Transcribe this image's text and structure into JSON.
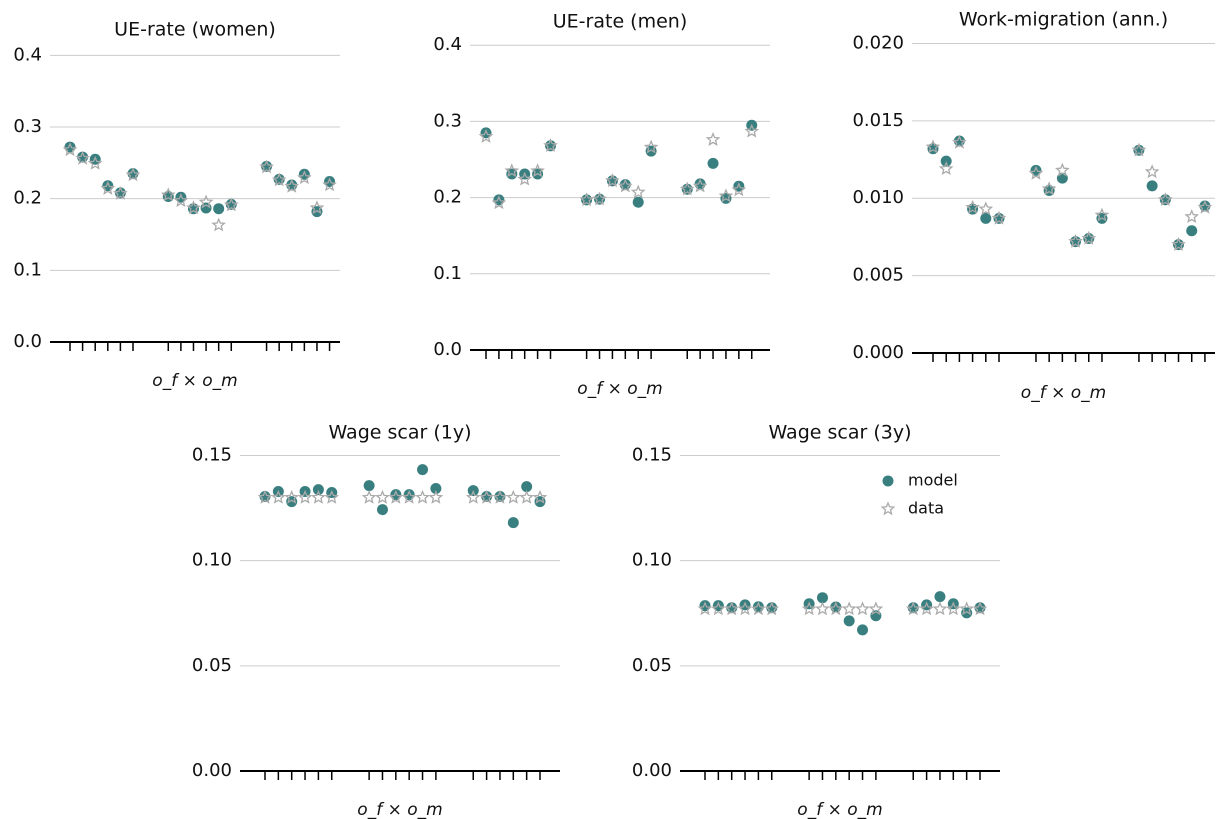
{
  "chart_data": [
    {
      "type": "scatter",
      "title": "UE-rate (women)",
      "xlabel": "o_f × o_m",
      "categories": [
        null,
        null,
        null,
        null,
        null,
        null,
        null,
        null,
        null,
        null,
        null,
        null,
        null,
        null,
        null,
        null,
        null,
        null
      ],
      "series": [
        {
          "color": "#3a7f80",
          "values": [
            0.272,
            0.258,
            0.255,
            0.218,
            0.208,
            0.235,
            0.203,
            0.202,
            0.186,
            0.187,
            0.186,
            0.192,
            0.245,
            0.227,
            0.219,
            0.234,
            0.182,
            0.224
          ]
        },
        {
          "color": "#aaaaaa",
          "values": [
            0.268,
            0.256,
            0.249,
            0.214,
            0.207,
            0.233,
            0.205,
            0.197,
            0.187,
            0.195,
            0.163,
            0.191,
            0.244,
            0.226,
            0.217,
            0.229,
            0.187,
            0.219
          ]
        }
      ],
      "ylim": [
        0,
        0.42
      ],
      "yticks": [
        {
          "value": 0,
          "label": "0.0"
        },
        0.1,
        0.2,
        0.3,
        0.4
      ],
      "grid": true
    },
    {
      "type": "scatter",
      "title": "UE-rate (men)",
      "xlabel": "o_f × o_m",
      "categories": [
        null,
        null,
        null,
        null,
        null,
        null,
        null,
        null,
        null,
        null,
        null,
        null,
        null,
        null,
        null,
        null,
        null,
        null
      ],
      "series": [
        {
          "color": "#3a7f80",
          "values": [
            0.285,
            0.197,
            0.231,
            0.231,
            0.231,
            0.268,
            0.197,
            0.198,
            0.222,
            0.217,
            0.194,
            0.261,
            0.211,
            0.218,
            0.245,
            0.199,
            0.215,
            0.295
          ]
        },
        {
          "color": "#aaaaaa",
          "values": [
            0.28,
            0.193,
            0.235,
            0.224,
            0.235,
            0.268,
            0.197,
            0.198,
            0.222,
            0.215,
            0.207,
            0.266,
            0.211,
            0.215,
            0.276,
            0.202,
            0.21,
            0.287
          ]
        }
      ],
      "ylim": [
        0,
        0.42
      ],
      "yticks": [
        {
          "value": 0,
          "label": "0.0"
        },
        0.1,
        0.2,
        0.3,
        0.4
      ],
      "grid": true
    },
    {
      "type": "scatter",
      "title": "Work-migration (ann.)",
      "xlabel": "o_f × o_m",
      "categories": [
        null,
        null,
        null,
        null,
        null,
        null,
        null,
        null,
        null,
        null,
        null,
        null,
        null,
        null,
        null,
        null,
        null,
        null
      ],
      "series": [
        {
          "color": "#3a7f80",
          "values": [
            0.0132,
            0.0124,
            0.0137,
            0.0093,
            0.0087,
            0.0087,
            0.0118,
            0.0105,
            0.0113,
            0.0072,
            0.0074,
            0.0087,
            0.0131,
            0.0108,
            0.0099,
            0.007,
            0.0079,
            0.0095
          ]
        },
        {
          "color": "#aaaaaa",
          "values": [
            0.0133,
            0.0119,
            0.0136,
            0.0094,
            0.0093,
            0.0087,
            0.0116,
            0.0106,
            0.0118,
            0.0072,
            0.0074,
            0.0089,
            0.0131,
            0.0117,
            0.0099,
            0.007,
            0.0088,
            0.0094
          ]
        }
      ],
      "ylim": [
        0,
        0.021
      ],
      "yticks": [
        {
          "value": 0,
          "label": "0.000"
        },
        0.005,
        {
          "value": 0.01,
          "label": "0.010"
        },
        0.015,
        {
          "value": 0.02,
          "label": "0.020"
        }
      ],
      "grid": true
    },
    {
      "type": "scatter",
      "title": "Wage scar (1y)",
      "xlabel": "o_f × o_m",
      "categories": [
        null,
        null,
        null,
        null,
        null,
        null,
        null,
        null,
        null,
        null,
        null,
        null,
        null,
        null,
        null,
        null,
        null,
        null
      ],
      "series": [
        {
          "color": "#3a7f80",
          "values": [
            0.1305,
            0.1329,
            0.1281,
            0.1329,
            0.1338,
            0.1324,
            0.1357,
            0.1243,
            0.1314,
            0.1314,
            0.1433,
            0.1343,
            0.1333,
            0.1305,
            0.1305,
            0.1181,
            0.1352,
            0.1281
          ]
        },
        {
          "color": "#aaaaaa",
          "values": [
            0.13,
            0.13,
            0.13,
            0.13,
            0.13,
            0.13,
            0.13,
            0.13,
            0.13,
            0.13,
            0.13,
            0.13,
            0.13,
            0.13,
            0.13,
            0.13,
            0.13,
            0.13
          ]
        }
      ],
      "ylim": [
        0,
        0.155
      ],
      "yticks": [
        {
          "value": 0,
          "label": "0.00"
        },
        0.05,
        {
          "value": 0.1,
          "label": "0.10"
        },
        0.15
      ],
      "grid": true
    },
    {
      "type": "scatter",
      "title": "Wage scar (3y)",
      "xlabel": "o_f × o_m",
      "categories": [
        null,
        null,
        null,
        null,
        null,
        null,
        null,
        null,
        null,
        null,
        null,
        null,
        null,
        null,
        null,
        null,
        null,
        null
      ],
      "series": [
        {
          "name": "model",
          "color": "#3a7f80",
          "values": [
            0.0786,
            0.0786,
            0.0776,
            0.079,
            0.0781,
            0.0776,
            0.0795,
            0.0824,
            0.078,
            0.0714,
            0.0671,
            0.0738,
            0.0776,
            0.079,
            0.0829,
            0.0795,
            0.0752,
            0.0776
          ]
        },
        {
          "name": "data",
          "color": "#aaaaaa",
          "values": [
            0.077,
            0.077,
            0.077,
            0.077,
            0.077,
            0.077,
            0.077,
            0.077,
            0.077,
            0.077,
            0.077,
            0.077,
            0.077,
            0.077,
            0.077,
            0.077,
            0.077,
            0.077
          ]
        }
      ],
      "ylim": [
        0,
        0.155
      ],
      "yticks": [
        {
          "value": 0,
          "label": "0.00"
        },
        0.05,
        {
          "value": 0.1,
          "label": "0.10"
        },
        0.15
      ],
      "grid": true,
      "legend": "upper right"
    }
  ]
}
